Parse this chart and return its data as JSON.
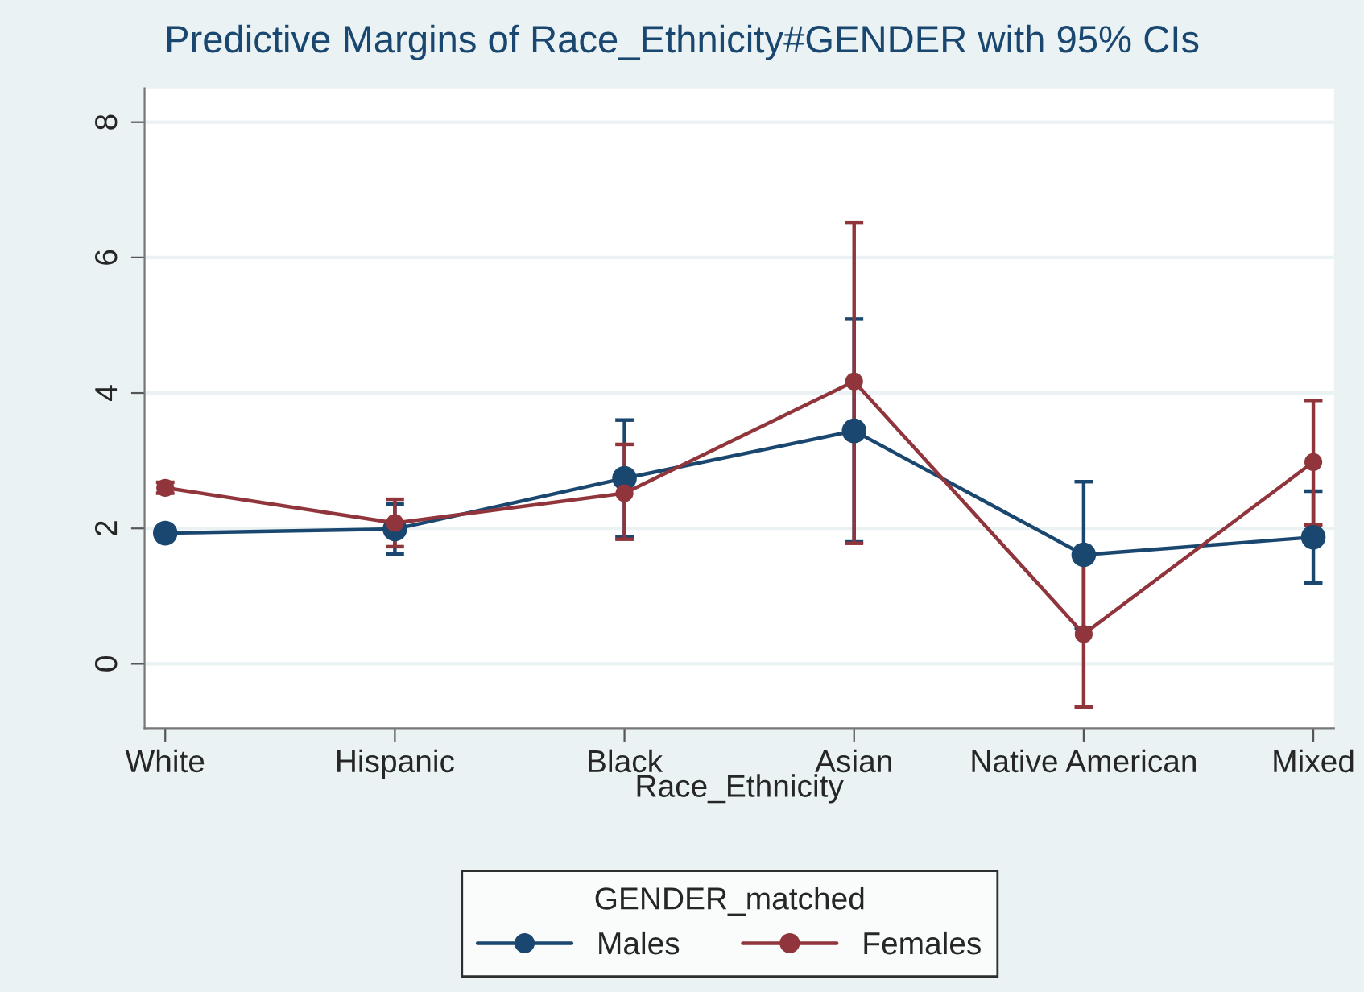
{
  "chart_data": {
    "type": "line",
    "title": "Predictive Margins of Race_Ethnicity#GENDER with 95% CIs",
    "xlabel": "Race_Ethnicity",
    "legend_title": "GENDER_matched",
    "categories": [
      "White",
      "Hispanic",
      "Black",
      "Asian",
      "Native American",
      "Mixed"
    ],
    "series": [
      {
        "name": "Males",
        "color": "#1a476f",
        "values": [
          1.93,
          1.99,
          2.74,
          3.44,
          1.61,
          1.87
        ],
        "errors": [
          null,
          [
            1.62,
            2.36
          ],
          [
            1.88,
            3.6
          ],
          [
            1.8,
            5.09
          ],
          [
            0.53,
            2.69
          ],
          [
            1.19,
            2.55
          ]
        ]
      },
      {
        "name": "Females",
        "color": "#90353b",
        "values": [
          2.6,
          2.08,
          2.52,
          4.17,
          0.44,
          2.98
        ],
        "errors": [
          [
            2.52,
            2.68
          ],
          [
            1.73,
            2.43
          ],
          [
            1.84,
            3.24
          ],
          [
            1.78,
            6.52
          ],
          [
            -0.64,
            1.52
          ],
          [
            2.05,
            3.89
          ]
        ]
      }
    ],
    "ylim": [
      -0.95,
      8.5
    ],
    "yticks": [
      0,
      2,
      4,
      6,
      8
    ],
    "grid": "y",
    "legend": "bottom",
    "marker": "circle",
    "line_style": "solid"
  }
}
